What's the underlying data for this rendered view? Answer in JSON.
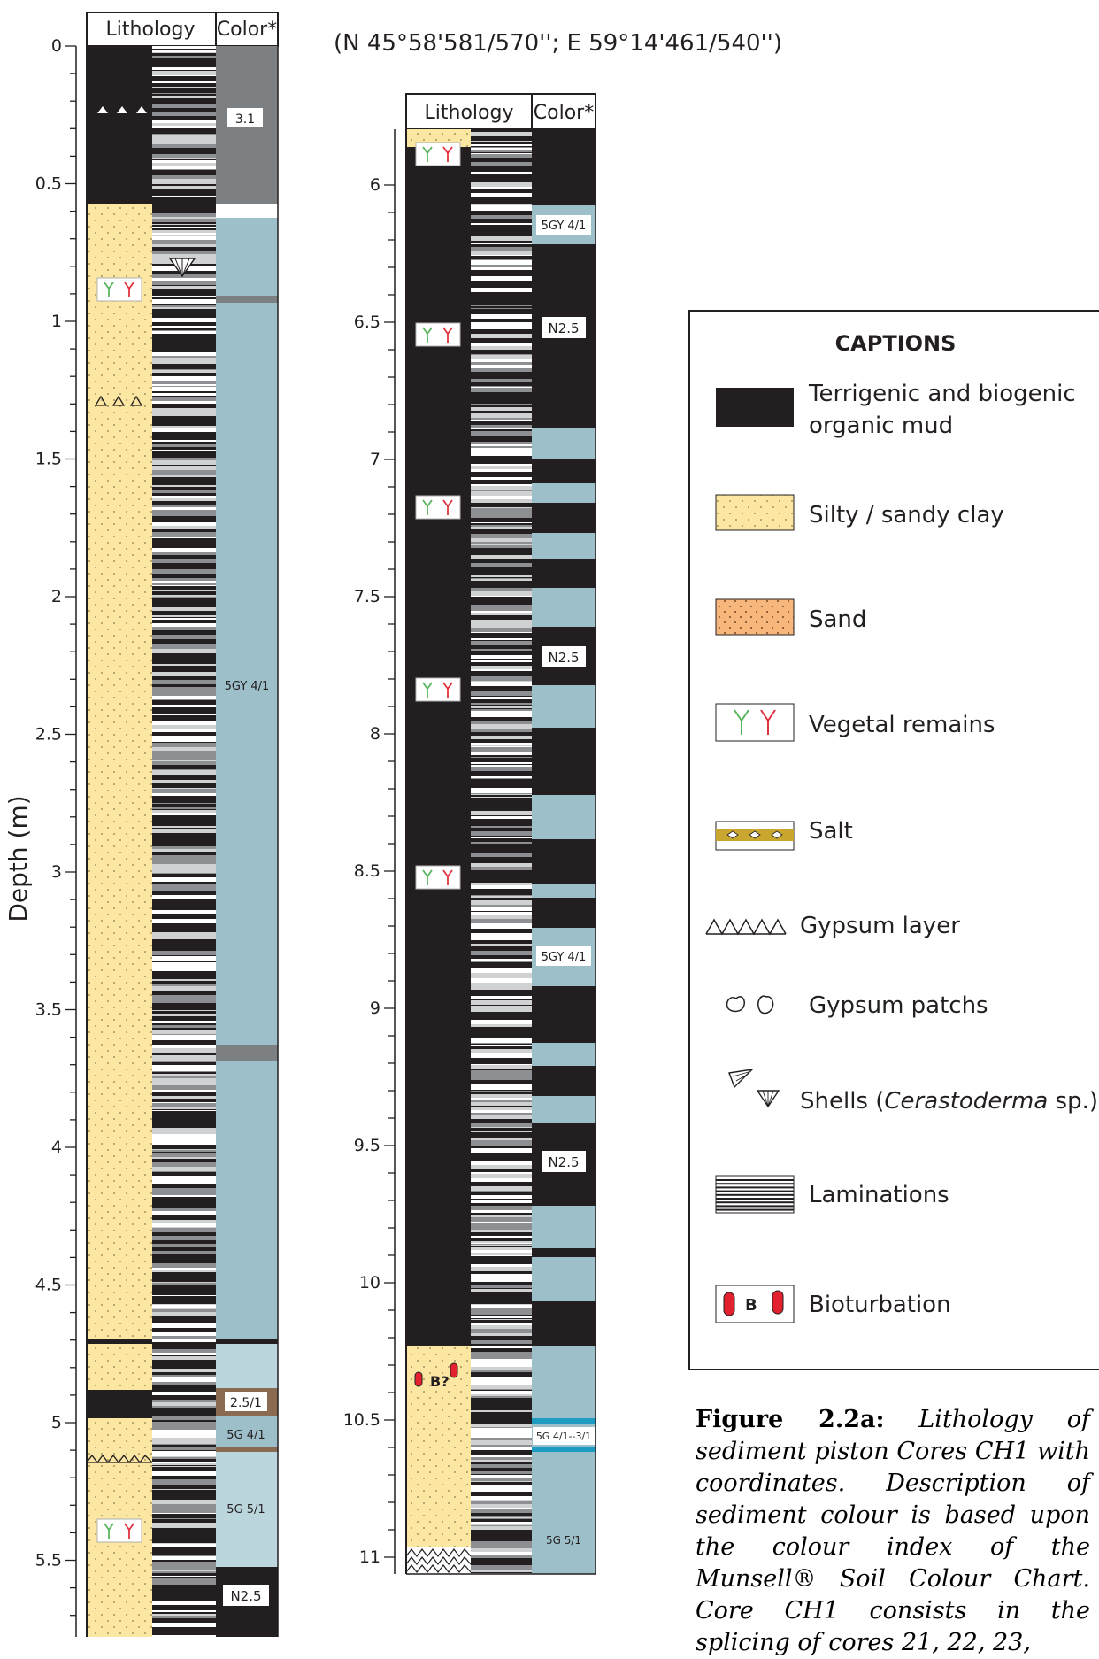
{
  "coordinates": "(N 45°58'581/570''; E 59°14'461/540'')",
  "y_axis_label": "Depth (m)",
  "column_headers": {
    "lithology": "Lithology",
    "color": "Color*"
  },
  "core1_ticks": [
    "0",
    "0.5",
    "1",
    "1.5",
    "2",
    "2.5",
    "3",
    "3.5",
    "4",
    "4.5",
    "5",
    "5.5"
  ],
  "core2_ticks": [
    "6",
    "6.5",
    "7",
    "7.5",
    "8",
    "8.5",
    "9",
    "9.5",
    "10",
    "10.5",
    "11"
  ],
  "core1_colors": [
    "3.1",
    "5GY 4/1",
    "2.5/1",
    "5G 4/1",
    "5G 5/1",
    "N2.5"
  ],
  "core2_colors": [
    "5GY 4/1",
    "N2.5",
    "N2.5",
    "5GY 4/1",
    "N2.5",
    "5G 4/1--3/1",
    "5G 5/1"
  ],
  "bioturbation_label": "B?",
  "captions": {
    "title": "CAPTIONS",
    "items": [
      {
        "key": "mud",
        "label_line1": "Terrigenic and biogenic",
        "label_line2": "organic mud"
      },
      {
        "key": "silty",
        "label_line1": "Silty / sandy clay"
      },
      {
        "key": "sand",
        "label_line1": "Sand"
      },
      {
        "key": "vegetal",
        "label_line1": "Vegetal remains"
      },
      {
        "key": "salt",
        "label_line1": "Salt"
      },
      {
        "key": "gypsum-layer",
        "label_line1": "Gypsum layer"
      },
      {
        "key": "gypsum-patchs",
        "label_line1": "Gypsum patchs"
      },
      {
        "key": "shells",
        "label_pre": "Shells (",
        "label_italic": "Cerastoderma",
        "label_post": " sp.)"
      },
      {
        "key": "laminations",
        "label_line1": "Laminations"
      },
      {
        "key": "bioturbation",
        "label_line1": "Bioturbation",
        "icon_letter": "B"
      }
    ]
  },
  "figure_caption": {
    "label": "Figure 2.2a:",
    "text": "Lithology of sediment piston Cores CH1 with coordinates. Description of sediment colour is based upon the colour index of the Munsell® Soil Colour Chart. Core CH1 consists in the splicing of cores 21, 22, 23,"
  },
  "colors": {
    "mud": "#231f20",
    "silty": "#fbe6a2",
    "sand": "#f7b77c",
    "gray_blue": "#9dbfca",
    "light_blue": "#bcd6de",
    "dark_gray": "#7d8083",
    "brown": "#8b6a52",
    "teal": "#1e9bc2",
    "vegetal_green": "#59b55e",
    "vegetal_red": "#e0333f",
    "bioturbation_red": "#e2202e"
  }
}
